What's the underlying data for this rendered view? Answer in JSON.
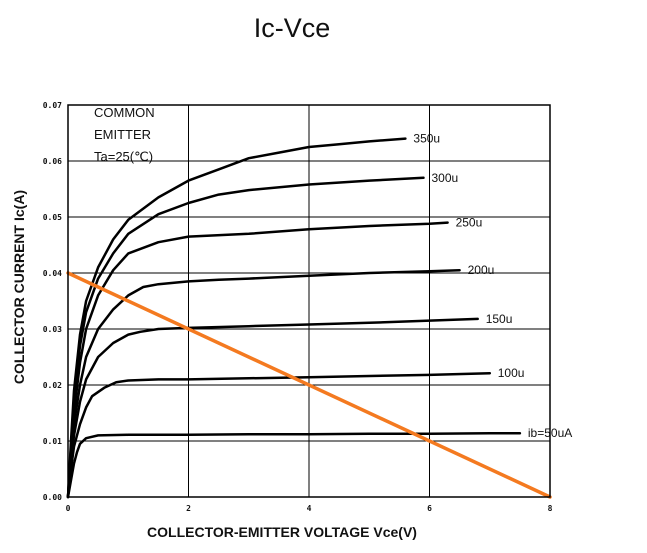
{
  "chart_data": {
    "type": "line",
    "title": "Ic-Vce",
    "xlabel": "COLLECTOR-EMITTER VOLTAGE Vce(V)",
    "ylabel": "COLLECTOR CURRENT Ic(A)",
    "xlim": [
      0,
      8
    ],
    "ylim": [
      0,
      0.07
    ],
    "xticks": [
      {
        "v": 0,
        "label": "0"
      },
      {
        "v": 2,
        "label": "2"
      },
      {
        "v": 4,
        "label": "4"
      },
      {
        "v": 6,
        "label": "6"
      },
      {
        "v": 8,
        "label": "8"
      }
    ],
    "yticks": [
      {
        "v": 0,
        "label": "0.00"
      },
      {
        "v": 0.01,
        "label": "0.01"
      },
      {
        "v": 0.02,
        "label": "0.02"
      },
      {
        "v": 0.03,
        "label": "0.03"
      },
      {
        "v": 0.04,
        "label": "0.04"
      },
      {
        "v": 0.05,
        "label": "0.05"
      },
      {
        "v": 0.06,
        "label": "0.06"
      },
      {
        "v": 0.07,
        "label": "0.07"
      }
    ],
    "grid": true,
    "annotation": [
      "COMMON",
      "EMITTER",
      "Ta=25(℃)"
    ],
    "series": [
      {
        "label": "ib=50uA",
        "color": "#000000",
        "points": [
          [
            0,
            0
          ],
          [
            0.05,
            0.003
          ],
          [
            0.1,
            0.006
          ],
          [
            0.15,
            0.008
          ],
          [
            0.2,
            0.0095
          ],
          [
            0.3,
            0.0105
          ],
          [
            0.5,
            0.011
          ],
          [
            1,
            0.0111
          ],
          [
            2,
            0.0111
          ],
          [
            3,
            0.0112
          ],
          [
            4,
            0.0112
          ],
          [
            5,
            0.0113
          ],
          [
            6,
            0.0113
          ],
          [
            7,
            0.0114
          ],
          [
            7.5,
            0.0114
          ]
        ]
      },
      {
        "label": "100u",
        "color": "#000000",
        "points": [
          [
            0,
            0
          ],
          [
            0.05,
            0.005
          ],
          [
            0.1,
            0.009
          ],
          [
            0.2,
            0.013
          ],
          [
            0.3,
            0.016
          ],
          [
            0.4,
            0.018
          ],
          [
            0.6,
            0.0195
          ],
          [
            0.8,
            0.0205
          ],
          [
            1,
            0.0208
          ],
          [
            1.5,
            0.021
          ],
          [
            2,
            0.021
          ],
          [
            3,
            0.0212
          ],
          [
            4,
            0.0214
          ],
          [
            5,
            0.0216
          ],
          [
            6,
            0.0218
          ],
          [
            7,
            0.0221
          ]
        ]
      },
      {
        "label": "150u",
        "color": "#000000",
        "points": [
          [
            0,
            0
          ],
          [
            0.05,
            0.006
          ],
          [
            0.1,
            0.011
          ],
          [
            0.2,
            0.017
          ],
          [
            0.3,
            0.021
          ],
          [
            0.5,
            0.025
          ],
          [
            0.75,
            0.0275
          ],
          [
            1,
            0.029
          ],
          [
            1.2,
            0.0295
          ],
          [
            1.5,
            0.03
          ],
          [
            2,
            0.0302
          ],
          [
            3,
            0.0305
          ],
          [
            4,
            0.0308
          ],
          [
            5,
            0.0311
          ],
          [
            6,
            0.0315
          ],
          [
            6.8,
            0.0318
          ]
        ]
      },
      {
        "label": "200u",
        "color": "#000000",
        "points": [
          [
            0,
            0
          ],
          [
            0.05,
            0.007
          ],
          [
            0.1,
            0.013
          ],
          [
            0.2,
            0.02
          ],
          [
            0.3,
            0.025
          ],
          [
            0.5,
            0.03
          ],
          [
            0.75,
            0.0335
          ],
          [
            1,
            0.036
          ],
          [
            1.25,
            0.0375
          ],
          [
            1.5,
            0.038
          ],
          [
            2,
            0.0385
          ],
          [
            2.5,
            0.0388
          ],
          [
            3,
            0.039
          ],
          [
            4,
            0.0395
          ],
          [
            5,
            0.04
          ],
          [
            6,
            0.0403
          ],
          [
            6.5,
            0.0405
          ]
        ]
      },
      {
        "label": "250u",
        "color": "#000000",
        "points": [
          [
            0,
            0
          ],
          [
            0.05,
            0.008
          ],
          [
            0.1,
            0.015
          ],
          [
            0.2,
            0.024
          ],
          [
            0.3,
            0.03
          ],
          [
            0.5,
            0.036
          ],
          [
            0.75,
            0.0405
          ],
          [
            1,
            0.0435
          ],
          [
            1.5,
            0.0455
          ],
          [
            2,
            0.0465
          ],
          [
            3,
            0.047
          ],
          [
            4,
            0.0478
          ],
          [
            5,
            0.0484
          ],
          [
            6,
            0.0488
          ],
          [
            6.3,
            0.049
          ]
        ]
      },
      {
        "label": "300u",
        "color": "#000000",
        "points": [
          [
            0,
            0
          ],
          [
            0.05,
            0.009
          ],
          [
            0.1,
            0.017
          ],
          [
            0.2,
            0.027
          ],
          [
            0.3,
            0.033
          ],
          [
            0.5,
            0.039
          ],
          [
            0.75,
            0.0435
          ],
          [
            1,
            0.047
          ],
          [
            1.5,
            0.0505
          ],
          [
            2,
            0.0525
          ],
          [
            2.5,
            0.054
          ],
          [
            3,
            0.0548
          ],
          [
            4,
            0.0558
          ],
          [
            5,
            0.0565
          ],
          [
            5.9,
            0.057
          ]
        ]
      },
      {
        "label": "350u",
        "color": "#000000",
        "points": [
          [
            0,
            0
          ],
          [
            0.05,
            0.01
          ],
          [
            0.1,
            0.019
          ],
          [
            0.2,
            0.029
          ],
          [
            0.3,
            0.035
          ],
          [
            0.5,
            0.041
          ],
          [
            0.75,
            0.046
          ],
          [
            1,
            0.0495
          ],
          [
            1.5,
            0.0535
          ],
          [
            2,
            0.0565
          ],
          [
            2.5,
            0.0585
          ],
          [
            3,
            0.0605
          ],
          [
            3.5,
            0.0615
          ],
          [
            4,
            0.0625
          ],
          [
            4.5,
            0.063
          ],
          [
            5,
            0.0635
          ],
          [
            5.6,
            0.064
          ]
        ]
      },
      {
        "label": "",
        "color": "#f47a20",
        "points": [
          [
            0,
            0.04
          ],
          [
            8,
            0
          ]
        ]
      }
    ]
  }
}
